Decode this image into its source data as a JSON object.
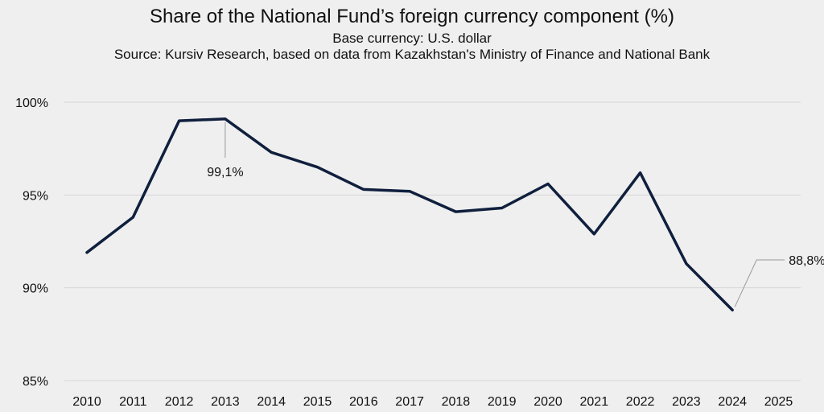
{
  "chart_data": {
    "type": "line",
    "title": "Share of the National Fund’s foreign currency component (%)",
    "subtitle_1": "Base currency: U.S. dollar",
    "subtitle_2": "Source: Kursiv Research, based on data from Kazakhstan's Ministry of Finance and National Bank",
    "x": [
      "2010",
      "2011",
      "2012",
      "2013",
      "2014",
      "2015",
      "2016",
      "2017",
      "2018",
      "2019",
      "2020",
      "2021",
      "2022",
      "2023",
      "2024",
      "2025"
    ],
    "series": [
      {
        "values": [
          91.9,
          93.8,
          99.0,
          99.1,
          97.3,
          96.5,
          95.3,
          95.2,
          94.1,
          94.3,
          95.6,
          92.9,
          96.2,
          91.3,
          88.8,
          null
        ]
      }
    ],
    "y_ticks": [
      85,
      90,
      95,
      100
    ],
    "y_tick_labels": [
      "85%",
      "90%",
      "95%",
      "100%"
    ],
    "ylim": [
      85,
      100
    ],
    "grid": true,
    "line_color": "#0f1f3d",
    "annotations": [
      {
        "x": "2013",
        "value": 99.1,
        "label": "99,1%"
      },
      {
        "x": "2024",
        "value": 88.8,
        "label": "88,8%"
      }
    ]
  }
}
